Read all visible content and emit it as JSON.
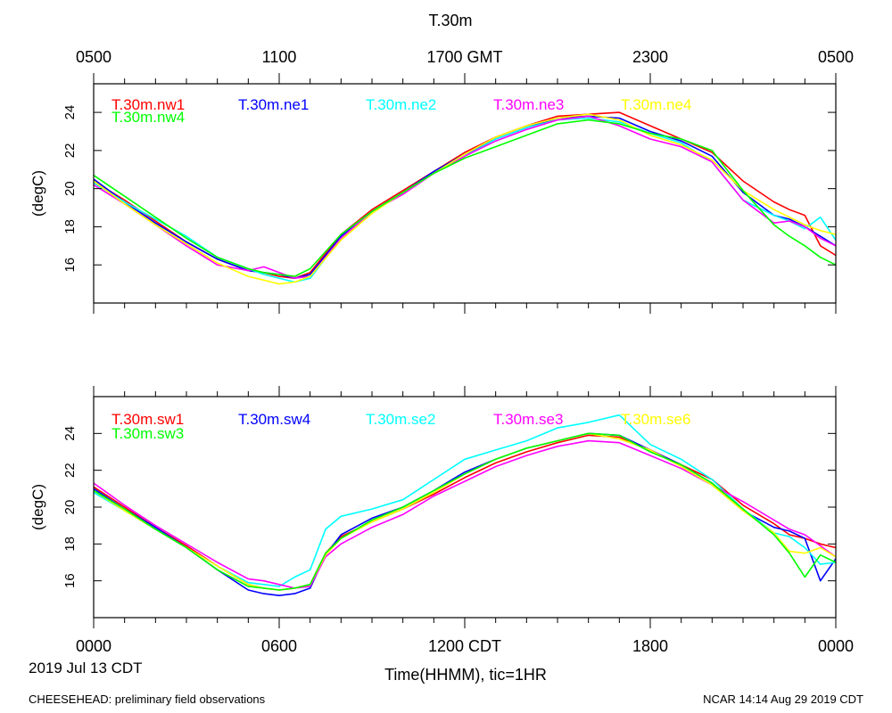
{
  "figure": {
    "title": "T.30m",
    "date_label": "2019 Jul 13 CDT",
    "footer_left": "CHEESEHEAD: preliminary field observations",
    "footer_right": "NCAR 14:14 Aug 29 2019 CDT"
  },
  "chart_data": [
    {
      "type": "line",
      "panel": "top",
      "title": "T.30m",
      "ylabel": "(degC)",
      "xlabel": "",
      "ylim": [
        14,
        25.5
      ],
      "xlim": [
        0,
        24
      ],
      "yticks": [
        16,
        18,
        20,
        22,
        24
      ],
      "top_axis_ticks": [
        {
          "x": 0,
          "label": "0500"
        },
        {
          "x": 6,
          "label": "1100"
        },
        {
          "x": 12,
          "label": "1700 GMT"
        },
        {
          "x": 18,
          "label": "2300"
        },
        {
          "x": 24,
          "label": "0500"
        }
      ],
      "x": [
        0,
        1,
        2,
        3,
        4,
        5,
        5.5,
        6,
        6.5,
        7,
        8,
        9,
        10,
        11,
        12,
        13,
        14,
        15,
        16,
        17,
        18,
        19,
        20,
        21,
        22,
        22.5,
        23,
        23.5,
        24
      ],
      "series": [
        {
          "name": "T.30m.nw1",
          "color": "#ff0000",
          "values": [
            20.4,
            19.4,
            18.3,
            17.2,
            16.3,
            15.7,
            15.6,
            15.4,
            15.3,
            15.6,
            17.6,
            18.9,
            19.9,
            20.9,
            21.9,
            22.7,
            23.3,
            23.8,
            23.9,
            24.0,
            23.3,
            22.6,
            21.9,
            20.4,
            19.3,
            18.9,
            18.6,
            17.0,
            16.5
          ]
        },
        {
          "name": "T.30m.ne1",
          "color": "#0000ff",
          "values": [
            20.5,
            19.3,
            18.2,
            17.2,
            16.3,
            15.7,
            15.6,
            15.5,
            15.3,
            15.5,
            17.5,
            18.8,
            19.8,
            20.9,
            21.8,
            22.6,
            23.2,
            23.7,
            23.8,
            23.7,
            23.0,
            22.5,
            21.7,
            19.8,
            18.6,
            18.4,
            18.0,
            17.5,
            17.0
          ]
        },
        {
          "name": "T.30m.ne2",
          "color": "#00ffff",
          "values": [
            20.3,
            19.3,
            18.4,
            17.5,
            16.4,
            15.8,
            15.5,
            15.3,
            15.1,
            15.3,
            17.4,
            18.8,
            19.8,
            20.8,
            21.7,
            22.6,
            23.2,
            23.6,
            23.7,
            23.5,
            22.9,
            22.4,
            21.4,
            19.4,
            18.6,
            18.3,
            17.9,
            18.5,
            17.3
          ]
        },
        {
          "name": "T.30m.ne3",
          "color": "#ff00ff",
          "values": [
            20.2,
            19.2,
            18.1,
            17.0,
            16.0,
            15.7,
            15.9,
            15.6,
            15.3,
            15.4,
            17.4,
            18.8,
            19.7,
            20.8,
            21.7,
            22.5,
            23.1,
            23.6,
            23.8,
            23.3,
            22.6,
            22.2,
            21.4,
            19.4,
            18.2,
            18.3,
            18.0,
            17.4,
            17.0
          ]
        },
        {
          "name": "T.30m.ne4",
          "color": "#ffff00",
          "values": [
            20.4,
            19.2,
            18.1,
            17.1,
            16.1,
            15.4,
            15.2,
            15.0,
            15.1,
            15.4,
            17.3,
            18.7,
            19.8,
            20.8,
            21.8,
            22.7,
            23.3,
            23.7,
            23.9,
            23.6,
            22.8,
            22.3,
            21.5,
            19.9,
            18.9,
            18.5,
            18.1,
            17.8,
            17.6
          ]
        },
        {
          "name": "T.30m.nw4",
          "color": "#00ff00",
          "values": [
            20.7,
            19.6,
            18.5,
            17.4,
            16.4,
            15.8,
            15.6,
            15.5,
            15.4,
            15.8,
            17.6,
            18.8,
            19.8,
            20.8,
            21.6,
            22.2,
            22.8,
            23.4,
            23.6,
            23.4,
            22.9,
            22.6,
            22.0,
            19.9,
            18.1,
            17.5,
            17.0,
            16.4,
            16.0
          ]
        }
      ]
    },
    {
      "type": "line",
      "panel": "bottom",
      "title": "",
      "ylabel": "(degC)",
      "xlabel": "Time(HHMM), tic=1HR",
      "ylim": [
        14,
        26
      ],
      "xlim": [
        0,
        24
      ],
      "yticks": [
        16,
        18,
        20,
        22,
        24
      ],
      "bottom_axis_ticks": [
        {
          "x": 0,
          "label": "0000"
        },
        {
          "x": 6,
          "label": "0600"
        },
        {
          "x": 12,
          "label": "1200 CDT"
        },
        {
          "x": 18,
          "label": "1800"
        },
        {
          "x": 24,
          "label": "0000"
        }
      ],
      "x": [
        0,
        1,
        2,
        3,
        4,
        5,
        5.5,
        6,
        6.5,
        7,
        7.5,
        8,
        9,
        10,
        11,
        12,
        13,
        14,
        15,
        16,
        17,
        18,
        19,
        20,
        21,
        22,
        22.5,
        23,
        23.5,
        24
      ],
      "series": [
        {
          "name": "T.30m.sw1",
          "color": "#ff0000",
          "values": [
            21.1,
            20.0,
            18.9,
            17.9,
            16.8,
            15.8,
            15.6,
            15.5,
            15.6,
            15.8,
            17.5,
            18.4,
            19.2,
            19.9,
            20.7,
            21.6,
            22.4,
            23.0,
            23.5,
            23.9,
            23.8,
            23.1,
            22.3,
            21.5,
            20.1,
            19.1,
            18.5,
            18.3,
            18.0,
            17.8
          ]
        },
        {
          "name": "T.30m.sw4",
          "color": "#0000ff",
          "values": [
            21.0,
            19.9,
            18.9,
            17.8,
            16.6,
            15.5,
            15.3,
            15.2,
            15.3,
            15.6,
            17.4,
            18.5,
            19.4,
            20.0,
            20.9,
            21.9,
            22.6,
            23.2,
            23.6,
            24.0,
            23.9,
            23.1,
            22.3,
            21.3,
            19.8,
            18.9,
            18.7,
            18.3,
            16.0,
            17.2
          ]
        },
        {
          "name": "T.30m.se2",
          "color": "#00ffff",
          "values": [
            20.8,
            19.8,
            18.8,
            17.8,
            16.8,
            15.9,
            15.8,
            15.7,
            16.2,
            16.6,
            18.8,
            19.5,
            19.9,
            20.4,
            21.5,
            22.6,
            23.1,
            23.6,
            24.3,
            24.6,
            25.0,
            23.4,
            22.6,
            21.5,
            19.9,
            18.6,
            18.4,
            17.8,
            16.9,
            17.0
          ]
        },
        {
          "name": "T.30m.se3",
          "color": "#ff00ff",
          "values": [
            21.3,
            20.1,
            19.0,
            18.0,
            17.0,
            16.1,
            16.0,
            15.8,
            15.6,
            15.7,
            17.3,
            18.0,
            18.9,
            19.6,
            20.6,
            21.4,
            22.2,
            22.8,
            23.3,
            23.6,
            23.5,
            22.8,
            22.1,
            21.2,
            20.3,
            19.3,
            18.8,
            18.5,
            17.9,
            17.3
          ]
        },
        {
          "name": "T.30m.se6",
          "color": "#ffff00",
          "values": [
            20.9,
            19.8,
            18.8,
            17.8,
            16.8,
            15.8,
            15.6,
            15.5,
            15.6,
            15.8,
            17.4,
            18.3,
            19.2,
            19.9,
            20.8,
            21.8,
            22.6,
            23.2,
            23.6,
            24.0,
            23.7,
            23.1,
            22.2,
            21.2,
            19.8,
            18.6,
            17.6,
            17.5,
            17.8,
            17.3
          ]
        },
        {
          "name": "T.30m.sw3",
          "color": "#00ff00",
          "values": [
            20.9,
            19.9,
            18.8,
            17.8,
            16.6,
            15.7,
            15.6,
            15.5,
            15.6,
            15.8,
            17.5,
            18.3,
            19.3,
            20.0,
            20.9,
            21.8,
            22.6,
            23.2,
            23.6,
            24.0,
            23.9,
            23.0,
            22.3,
            21.3,
            19.9,
            18.5,
            17.5,
            16.2,
            17.4,
            17.0
          ]
        }
      ]
    }
  ]
}
